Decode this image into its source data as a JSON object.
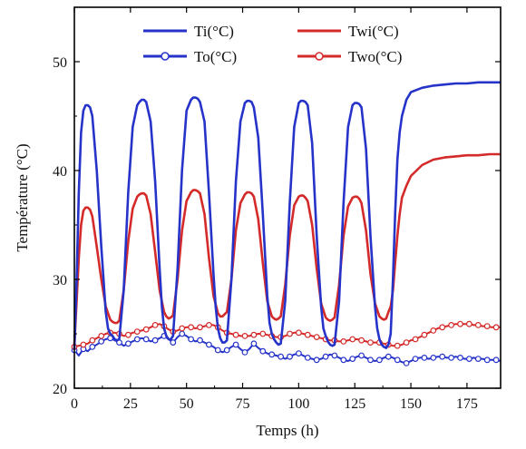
{
  "chart_data": {
    "type": "line",
    "title": "",
    "xlabel": "Temps (h)",
    "ylabel": "Température (°C)",
    "xlim": [
      0,
      190
    ],
    "ylim": [
      20,
      55
    ],
    "x_ticks": [
      0,
      25,
      50,
      75,
      100,
      125,
      150,
      175
    ],
    "y_ticks": [
      20,
      30,
      40,
      50
    ],
    "grid": false,
    "legend_position": "top",
    "series": [
      {
        "name": "Ti(°C)",
        "color": "#2633c9",
        "marker": "none",
        "x": [
          0,
          1,
          2,
          3,
          4,
          5,
          6,
          7,
          8,
          10,
          12,
          14,
          15,
          16,
          17,
          18,
          19,
          20,
          22,
          24,
          26,
          28,
          29,
          30,
          31,
          32,
          34,
          36,
          38,
          39,
          40,
          41,
          42,
          43,
          44,
          46,
          48,
          50,
          52,
          53,
          54,
          55,
          56,
          58,
          60,
          62,
          63,
          64,
          65,
          66,
          67,
          68,
          70,
          72,
          74,
          76,
          77,
          78,
          79,
          80,
          82,
          84,
          86,
          87,
          88,
          89,
          90,
          91,
          92,
          94,
          96,
          98,
          100,
          101,
          102,
          103,
          104,
          106,
          108,
          110,
          111,
          112,
          113,
          114,
          115,
          116,
          118,
          120,
          122,
          124,
          125,
          126,
          127,
          128,
          130,
          132,
          134,
          135,
          136,
          137,
          138,
          139,
          140,
          141,
          142,
          143,
          144,
          145,
          146,
          148,
          150,
          155,
          160,
          165,
          170,
          175,
          180,
          185,
          190
        ],
        "y": [
          23.5,
          30,
          38,
          43.5,
          45.5,
          46,
          46,
          45.8,
          45,
          40,
          33,
          27,
          25.5,
          25,
          24.8,
          24.5,
          24.4,
          24.5,
          29,
          38,
          44,
          46,
          46.3,
          46.5,
          46.5,
          46.3,
          44.5,
          39,
          31,
          27.5,
          25.5,
          24.8,
          24.5,
          24.5,
          24.8,
          31,
          40,
          45.5,
          46.5,
          46.7,
          46.7,
          46.6,
          46.3,
          44.5,
          38,
          30.5,
          27.5,
          25.5,
          24.6,
          24.2,
          24.2,
          24.4,
          30,
          39,
          44.5,
          46.2,
          46.4,
          46.4,
          46.3,
          45.8,
          43,
          36,
          28.5,
          26,
          25,
          24.5,
          24.2,
          24,
          24.1,
          28,
          37,
          44,
          46.2,
          46.4,
          46.4,
          46.3,
          46,
          42.5,
          34,
          27.5,
          25.5,
          24.8,
          24.3,
          24,
          23.9,
          24,
          28,
          37,
          44,
          46,
          46.2,
          46.2,
          46.1,
          45.8,
          42,
          34,
          27.5,
          25.5,
          24.5,
          24,
          23.8,
          23.7,
          24,
          25,
          30,
          36,
          41,
          43.5,
          45,
          46.5,
          47.2,
          47.6,
          47.8,
          47.9,
          48,
          48,
          48.1,
          48.1,
          48.1
        ]
      },
      {
        "name": "Twi(°C)",
        "color": "#d42a2a",
        "marker": "none",
        "x": [
          0,
          1,
          2,
          3,
          4,
          5,
          6,
          7,
          8,
          10,
          12,
          14,
          16,
          17,
          18,
          19,
          20,
          22,
          24,
          26,
          28,
          29,
          30,
          31,
          32,
          34,
          36,
          38,
          40,
          41,
          42,
          43,
          44,
          46,
          48,
          50,
          52,
          53,
          54,
          55,
          56,
          58,
          60,
          62,
          64,
          65,
          66,
          67,
          68,
          70,
          72,
          74,
          76,
          77,
          78,
          79,
          80,
          82,
          84,
          86,
          88,
          89,
          90,
          91,
          92,
          94,
          96,
          98,
          100,
          101,
          102,
          103,
          104,
          106,
          108,
          110,
          112,
          113,
          114,
          115,
          116,
          118,
          120,
          122,
          124,
          125,
          126,
          127,
          128,
          130,
          132,
          134,
          136,
          137,
          138,
          139,
          140,
          141,
          142,
          143,
          144,
          145,
          146,
          148,
          150,
          155,
          160,
          165,
          170,
          175,
          180,
          185,
          190
        ],
        "y": [
          24,
          28,
          32,
          35,
          36.3,
          36.6,
          36.6,
          36.4,
          35.8,
          33,
          30,
          27.5,
          26.3,
          26.1,
          26,
          26,
          26.2,
          29,
          33.5,
          36.5,
          37.6,
          37.8,
          37.9,
          37.9,
          37.7,
          36,
          32.5,
          29,
          27,
          26.6,
          26.4,
          26.5,
          26.7,
          30,
          34.5,
          37.2,
          38,
          38.2,
          38.2,
          38.1,
          37.9,
          36,
          32,
          28.5,
          26.9,
          26.6,
          26.6,
          26.8,
          27,
          30,
          34.5,
          37,
          37.8,
          38,
          38,
          37.9,
          37.6,
          35.5,
          31.5,
          28,
          26.6,
          26.4,
          26.3,
          26.4,
          26.6,
          29.5,
          34,
          36.8,
          37.6,
          37.7,
          37.7,
          37.5,
          37.2,
          35,
          31,
          27.8,
          26.5,
          26.3,
          26.2,
          26.3,
          26.5,
          29.5,
          34,
          36.7,
          37.5,
          37.6,
          37.6,
          37.4,
          37,
          34.5,
          30.5,
          27.8,
          26.6,
          26.4,
          26.3,
          26.4,
          27,
          27.5,
          29,
          31.5,
          34,
          36,
          37.5,
          38.6,
          39.5,
          40.5,
          41,
          41.2,
          41.3,
          41.4,
          41.4,
          41.5,
          41.5
        ]
      },
      {
        "name": "To(°C)",
        "color": "#2633c9",
        "marker": "open-circle",
        "x": [
          0,
          2,
          4,
          6,
          8,
          10,
          12,
          14,
          16,
          18,
          20,
          22,
          24,
          26,
          28,
          30,
          32,
          34,
          36,
          38,
          40,
          42,
          44,
          46,
          48,
          50,
          52,
          54,
          56,
          58,
          60,
          62,
          64,
          66,
          68,
          70,
          72,
          74,
          76,
          78,
          80,
          82,
          84,
          86,
          88,
          90,
          92,
          94,
          96,
          98,
          100,
          102,
          104,
          106,
          108,
          110,
          112,
          114,
          116,
          118,
          120,
          122,
          124,
          126,
          128,
          130,
          132,
          134,
          136,
          138,
          140,
          142,
          144,
          146,
          148,
          150,
          152,
          154,
          156,
          158,
          160,
          162,
          164,
          166,
          168,
          170,
          172,
          174,
          176,
          178,
          180,
          182,
          184,
          186,
          188,
          190
        ],
        "y": [
          23.5,
          23,
          23.6,
          23.4,
          23.8,
          24,
          24.3,
          24.5,
          24.6,
          24.4,
          24.2,
          23.9,
          24.1,
          24.3,
          24.5,
          24.6,
          24.5,
          24.3,
          24.4,
          24.6,
          24.8,
          24.5,
          24.2,
          24.7,
          25,
          24.8,
          24.5,
          24.3,
          24.4,
          24.2,
          24,
          23.8,
          23.5,
          23.3,
          23.5,
          23.8,
          24,
          23.6,
          23.3,
          23.6,
          24.1,
          23.7,
          23.4,
          23.2,
          23.1,
          23,
          22.9,
          22.7,
          22.9,
          23.1,
          23.2,
          23,
          22.8,
          22.7,
          22.6,
          22.7,
          22.9,
          23.1,
          23,
          22.8,
          22.6,
          22.5,
          22.7,
          22.9,
          23,
          22.8,
          22.6,
          22.5,
          22.6,
          22.8,
          22.9,
          22.8,
          22.6,
          22.4,
          22.3,
          22.5,
          22.7,
          22.8,
          22.8,
          22.7,
          22.8,
          22.9,
          22.9,
          22.8,
          22.8,
          22.9,
          22.8,
          22.7,
          22.7,
          22.8,
          22.7,
          22.7,
          22.6,
          22.6,
          22.6,
          22.5
        ]
      },
      {
        "name": "Two(°C)",
        "color": "#d42a2a",
        "marker": "open-circle",
        "x": [
          0,
          2,
          4,
          6,
          8,
          10,
          12,
          14,
          16,
          18,
          20,
          22,
          24,
          26,
          28,
          30,
          32,
          34,
          36,
          38,
          40,
          42,
          44,
          46,
          48,
          50,
          52,
          54,
          56,
          58,
          60,
          62,
          64,
          66,
          68,
          70,
          72,
          74,
          76,
          78,
          80,
          82,
          84,
          86,
          88,
          90,
          92,
          94,
          96,
          98,
          100,
          102,
          104,
          106,
          108,
          110,
          112,
          114,
          116,
          118,
          120,
          122,
          124,
          126,
          128,
          130,
          132,
          134,
          136,
          138,
          140,
          142,
          144,
          146,
          148,
          150,
          152,
          154,
          156,
          158,
          160,
          162,
          164,
          166,
          168,
          170,
          172,
          174,
          176,
          178,
          180,
          182,
          184,
          186,
          188,
          190
        ],
        "y": [
          23.8,
          23.9,
          24,
          24.1,
          24.4,
          24.6,
          24.8,
          25,
          25.1,
          25.1,
          25,
          24.8,
          24.9,
          25.1,
          25.2,
          25.3,
          25.4,
          25.6,
          25.8,
          25.9,
          25.7,
          25.4,
          25.2,
          25.3,
          25.5,
          25.6,
          25.6,
          25.5,
          25.6,
          25.7,
          25.8,
          25.8,
          25.6,
          25.3,
          25.1,
          25,
          24.9,
          24.8,
          24.8,
          24.8,
          24.9,
          25,
          25,
          24.9,
          24.8,
          24.7,
          24.7,
          24.8,
          25,
          25.1,
          25.1,
          25,
          24.9,
          24.8,
          24.7,
          24.6,
          24.5,
          24.4,
          24.4,
          24.3,
          24.3,
          24.4,
          24.5,
          24.5,
          24.4,
          24.3,
          24.2,
          24.2,
          24.2,
          24.1,
          24,
          23.9,
          23.9,
          24,
          24.2,
          24.4,
          24.5,
          24.7,
          24.9,
          25.1,
          25.3,
          25.5,
          25.6,
          25.7,
          25.8,
          25.9,
          25.9,
          25.9,
          25.9,
          25.8,
          25.8,
          25.7,
          25.7,
          25.6,
          25.6,
          25.6
        ]
      }
    ]
  }
}
